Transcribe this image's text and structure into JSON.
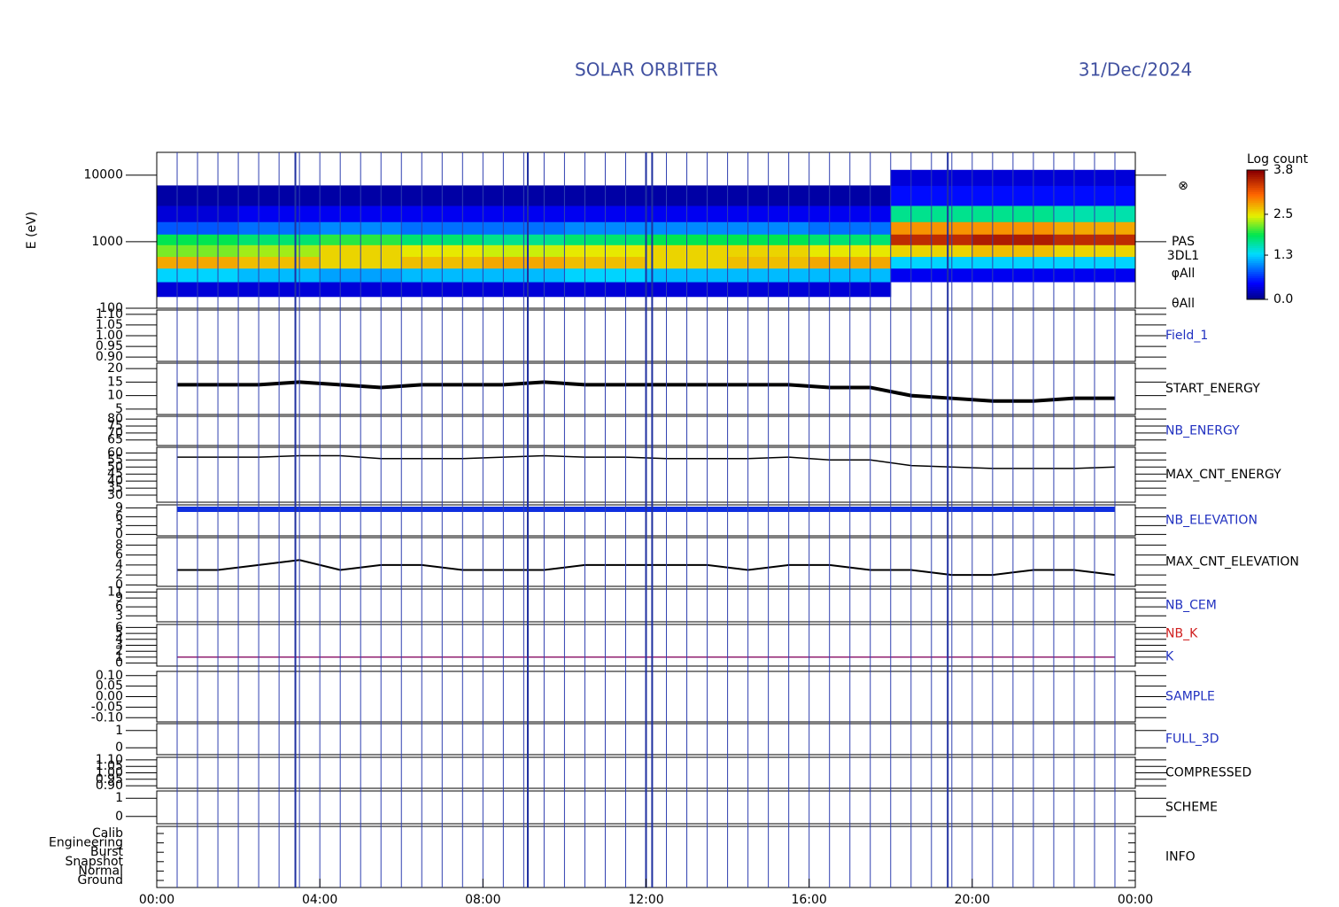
{
  "chart_data": {
    "type": "stack",
    "title": "SOLAR ORBITER",
    "date": "31/Dec/2024",
    "xlim": [
      0,
      24
    ],
    "xticks": [
      {
        "value": 0,
        "label": "00:00"
      },
      {
        "value": 4,
        "label": "04:00"
      },
      {
        "value": 8,
        "label": "08:00"
      },
      {
        "value": 12,
        "label": "12:00"
      },
      {
        "value": 16,
        "label": "16:00"
      },
      {
        "value": 20,
        "label": "20:00"
      },
      {
        "value": 24,
        "label": "00:00"
      }
    ],
    "file_boundaries": [
      0.5,
      1,
      1.5,
      2,
      2.5,
      3,
      3.5,
      4,
      4.5,
      5,
      5.5,
      6,
      6.5,
      7,
      7.5,
      8,
      8.5,
      9,
      9.5,
      10,
      10.5,
      11,
      11.5,
      12,
      12.5,
      13,
      13.5,
      14,
      14.5,
      15,
      15.5,
      16,
      16.5,
      17,
      17.5,
      18,
      18.5,
      19,
      19.5,
      20,
      20.5,
      21,
      21.5,
      22,
      22.5,
      23,
      23.5
    ],
    "major_boundaries": [
      3.4,
      9.1,
      12.0,
      12.15,
      19.4
    ],
    "x": [
      0.5,
      1.5,
      2.5,
      3.5,
      4.5,
      5.5,
      6.5,
      7.5,
      8.5,
      9.5,
      10.5,
      11.5,
      12.5,
      13.5,
      14.5,
      15.5,
      16.5,
      17.5,
      18.5,
      19.5,
      20.5,
      21.5,
      22.5,
      23.5
    ],
    "panels": [
      {
        "type": "heatmap",
        "ylabel": "E (eV)",
        "ylog": true,
        "ylim": [
          100,
          22000
        ],
        "yticks": [
          100,
          1000,
          10000
        ],
        "labels": [
          {
            "text": "⊗",
            "color": "#000000"
          },
          {
            "text": "PAS",
            "color": "#000000"
          },
          {
            "text": "3DL1",
            "color": "#000000"
          },
          {
            "text": "φAll",
            "color": "#000000"
          },
          {
            "text": "θAll",
            "color": "#000000"
          }
        ],
        "x_bins": [
          0,
          2,
          4,
          6,
          8,
          10,
          12,
          14,
          16,
          18,
          20,
          22,
          24
        ],
        "y_bins": [
          150,
          250,
          400,
          600,
          900,
          1300,
          2000,
          3500,
          7000,
          12000
        ],
        "z": [
          [
            0.3,
            1.3,
            2.8,
            2.2,
            1.9,
            0.8,
            0.3,
            0.1,
            null
          ],
          [
            0.3,
            1.2,
            2.7,
            2.3,
            1.8,
            0.9,
            0.4,
            0.1,
            null
          ],
          [
            0.3,
            1.1,
            2.6,
            2.6,
            2.0,
            1.0,
            0.4,
            0.1,
            null
          ],
          [
            0.3,
            1.2,
            2.7,
            2.5,
            1.8,
            0.9,
            0.4,
            0.1,
            null
          ],
          [
            0.3,
            1.2,
            2.8,
            2.4,
            1.7,
            0.9,
            0.4,
            0.1,
            null
          ],
          [
            0.3,
            1.3,
            2.7,
            2.5,
            1.8,
            1.0,
            0.4,
            0.1,
            null
          ],
          [
            0.3,
            1.2,
            2.6,
            2.6,
            1.9,
            1.0,
            0.4,
            0.1,
            null
          ],
          [
            0.3,
            1.2,
            2.7,
            2.6,
            1.9,
            1.0,
            0.4,
            0.1,
            null
          ],
          [
            0.3,
            1.2,
            2.8,
            2.5,
            1.8,
            0.9,
            0.4,
            0.1,
            null
          ],
          [
            null,
            0.4,
            1.3,
            2.6,
            3.5,
            2.9,
            1.7,
            0.5,
            0.3
          ],
          [
            null,
            0.4,
            1.3,
            2.7,
            3.6,
            2.9,
            1.7,
            0.5,
            0.3
          ],
          [
            null,
            0.4,
            1.3,
            2.6,
            3.5,
            2.8,
            1.6,
            0.5,
            0.3
          ]
        ],
        "colorbar_title": "Log count",
        "zlim": [
          0,
          3.8
        ],
        "zticks": [
          {
            "value": 0,
            "label": "0.0"
          },
          {
            "value": 1.3,
            "label": "1.3"
          },
          {
            "value": 2.5,
            "label": "2.5"
          },
          {
            "value": 3.8,
            "label": "3.8"
          }
        ]
      },
      {
        "type": "line",
        "labels": [
          {
            "text": "Field_1",
            "color": "#2030c0"
          }
        ],
        "ylim": [
          0.88,
          1.12
        ],
        "yticks": [
          {
            "value": 0.9,
            "label": "0.90"
          },
          {
            "value": 0.95,
            "label": "0.95"
          },
          {
            "value": 1,
            "label": "1.00"
          },
          {
            "value": 1.05,
            "label": "1.05"
          },
          {
            "value": 1.1,
            "label": "1.10"
          }
        ],
        "series": []
      },
      {
        "type": "line",
        "labels": [
          {
            "text": "START_ENERGY",
            "color": "#000000"
          }
        ],
        "ylim": [
          3,
          22
        ],
        "yticks": [
          5,
          10,
          15,
          20
        ],
        "series": [
          {
            "color": "#000000",
            "width": 4,
            "values": [
              14,
              14,
              14,
              15,
              14,
              13,
              14,
              14,
              14,
              15,
              14,
              14,
              14,
              14,
              14,
              14,
              13,
              13,
              10,
              9,
              8,
              8,
              9,
              9
            ]
          }
        ]
      },
      {
        "type": "line",
        "labels": [
          {
            "text": "NB_ENERGY",
            "color": "#2030c0"
          }
        ],
        "ylim": [
          61,
          82
        ],
        "yticks": [
          65,
          70,
          75,
          80
        ],
        "series": []
      },
      {
        "type": "line",
        "labels": [
          {
            "text": "MAX_CNT_ENERGY",
            "color": "#000000"
          }
        ],
        "ylim": [
          25,
          64
        ],
        "yticks": [
          30,
          35,
          40,
          45,
          50,
          55,
          60
        ],
        "series": [
          {
            "color": "#000000",
            "width": 1.5,
            "values": [
              57,
              57,
              57,
              58,
              58,
              56,
              56,
              56,
              57,
              58,
              57,
              57,
              56,
              56,
              56,
              57,
              55,
              55,
              51,
              50,
              49,
              49,
              49,
              50
            ]
          }
        ]
      },
      {
        "type": "line",
        "labels": [
          {
            "text": "NB_ELEVATION",
            "color": "#2030c0"
          }
        ],
        "ylim": [
          -0.5,
          10
        ],
        "yticks": [
          0,
          3,
          6,
          9
        ],
        "series": [
          {
            "color": "#1030e0",
            "width": 6,
            "values": [
              8.5,
              8.5,
              8.5,
              8.5,
              8.5,
              8.5,
              8.5,
              8.5,
              8.5,
              8.5,
              8.5,
              8.5,
              8.5,
              8.5,
              8.5,
              8.5,
              8.5,
              8.5,
              8.5,
              8.5,
              8.5,
              8.5,
              8.5,
              8.5
            ]
          }
        ]
      },
      {
        "type": "line",
        "labels": [
          {
            "text": "MAX_CNT_ELEVATION",
            "color": "#000000"
          }
        ],
        "ylim": [
          -0.3,
          9.5
        ],
        "yticks": [
          0,
          2,
          4,
          6,
          8
        ],
        "series": [
          {
            "color": "#000000",
            "width": 2,
            "values": [
              3,
              3,
              4,
              5,
              3,
              4,
              4,
              3,
              3,
              3,
              4,
              4,
              4,
              4,
              3,
              4,
              4,
              3,
              3,
              2,
              2,
              3,
              3,
              2
            ]
          }
        ]
      },
      {
        "type": "line",
        "labels": [
          {
            "text": "NB_CEM",
            "color": "#2030c0"
          }
        ],
        "ylim": [
          1,
          12
        ],
        "yticks": [
          3,
          6,
          9,
          11
        ],
        "series": []
      },
      {
        "type": "line",
        "labels": [
          {
            "text": "NB_K",
            "color": "#d02020"
          },
          {
            "text": "K",
            "color": "#2030c0"
          }
        ],
        "ylim": [
          -0.5,
          6.5
        ],
        "yticks": [
          0,
          1,
          2,
          3,
          4,
          5,
          6
        ],
        "series": [
          {
            "color": "#902070",
            "width": 1.5,
            "values": [
              1,
              1,
              1,
              1,
              1,
              1,
              1,
              1,
              1,
              1,
              1,
              1,
              1,
              1,
              1,
              1,
              1,
              1,
              1,
              1,
              1,
              1,
              1,
              1
            ]
          }
        ]
      },
      {
        "type": "line",
        "labels": [
          {
            "text": "SAMPLE",
            "color": "#2030c0"
          }
        ],
        "ylim": [
          -0.12,
          0.12
        ],
        "yticks": [
          {
            "value": -0.1,
            "label": "-0.10"
          },
          {
            "value": -0.05,
            "label": "-0.05"
          },
          {
            "value": 0,
            "label": "0.00"
          },
          {
            "value": 0.05,
            "label": "0.05"
          },
          {
            "value": 0.1,
            "label": "0.10"
          }
        ],
        "series": []
      },
      {
        "type": "line",
        "labels": [
          {
            "text": "FULL_3D",
            "color": "#2030c0"
          }
        ],
        "ylim": [
          -0.4,
          1.4
        ],
        "yticks": [
          0,
          1
        ],
        "series": []
      },
      {
        "type": "line",
        "labels": [
          {
            "text": "COMPRESSED",
            "color": "#000000"
          }
        ],
        "ylim": [
          0.88,
          1.12
        ],
        "yticks": [
          {
            "value": 0.9,
            "label": "0.90"
          },
          {
            "value": 0.95,
            "label": "0.95"
          },
          {
            "value": 1,
            "label": "1.00"
          },
          {
            "value": 1.05,
            "label": "1.05"
          },
          {
            "value": 1.1,
            "label": "1.10"
          }
        ],
        "series": []
      },
      {
        "type": "line",
        "labels": [
          {
            "text": "SCHEME",
            "color": "#000000"
          }
        ],
        "ylim": [
          -0.4,
          1.4
        ],
        "yticks": [
          0,
          1
        ],
        "series": []
      },
      {
        "type": "category",
        "labels": [
          {
            "text": "INFO",
            "color": "#000000"
          }
        ],
        "categories": [
          "Ground",
          "Normal",
          "Snapshot",
          "Burst",
          "Engineering",
          "Calib"
        ],
        "series": []
      }
    ]
  }
}
